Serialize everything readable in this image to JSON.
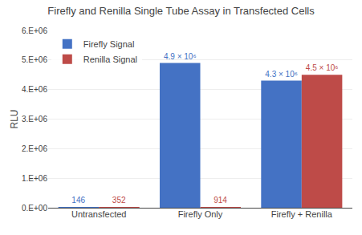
{
  "chart_data": {
    "type": "bar",
    "title": "Firefly and Renilla Single Tube Assay in Transfected Cells",
    "ylabel": "RLU",
    "categories": [
      "Untransfected",
      "Firefly Only",
      "Firefly + Renilla"
    ],
    "series": [
      {
        "name": "Firefly Signal",
        "color": "#4472C4",
        "values": [
          146,
          4900000,
          4300000
        ],
        "value_labels": [
          "146",
          "4.9 × 10⁶",
          "4.3 × 10⁶"
        ]
      },
      {
        "name": "Renilla Signal",
        "color": "#BE4B48",
        "values": [
          352,
          914,
          4500000
        ],
        "value_labels": [
          "352",
          "914",
          "4.5 × 10⁶"
        ]
      }
    ],
    "ylim": [
      0,
      6000000
    ],
    "yticks": [
      {
        "value": 0,
        "label": "0.E+00"
      },
      {
        "value": 1000000,
        "label": "1.E+06"
      },
      {
        "value": 2000000,
        "label": "2.E+06"
      },
      {
        "value": 3000000,
        "label": "3.E+06"
      },
      {
        "value": 4000000,
        "label": "4.E+06"
      },
      {
        "value": 5000000,
        "label": "5.E+06"
      },
      {
        "value": 6000000,
        "label": "6.E+06"
      }
    ],
    "grid": true,
    "legend": "upper left",
    "data_labels": true
  }
}
